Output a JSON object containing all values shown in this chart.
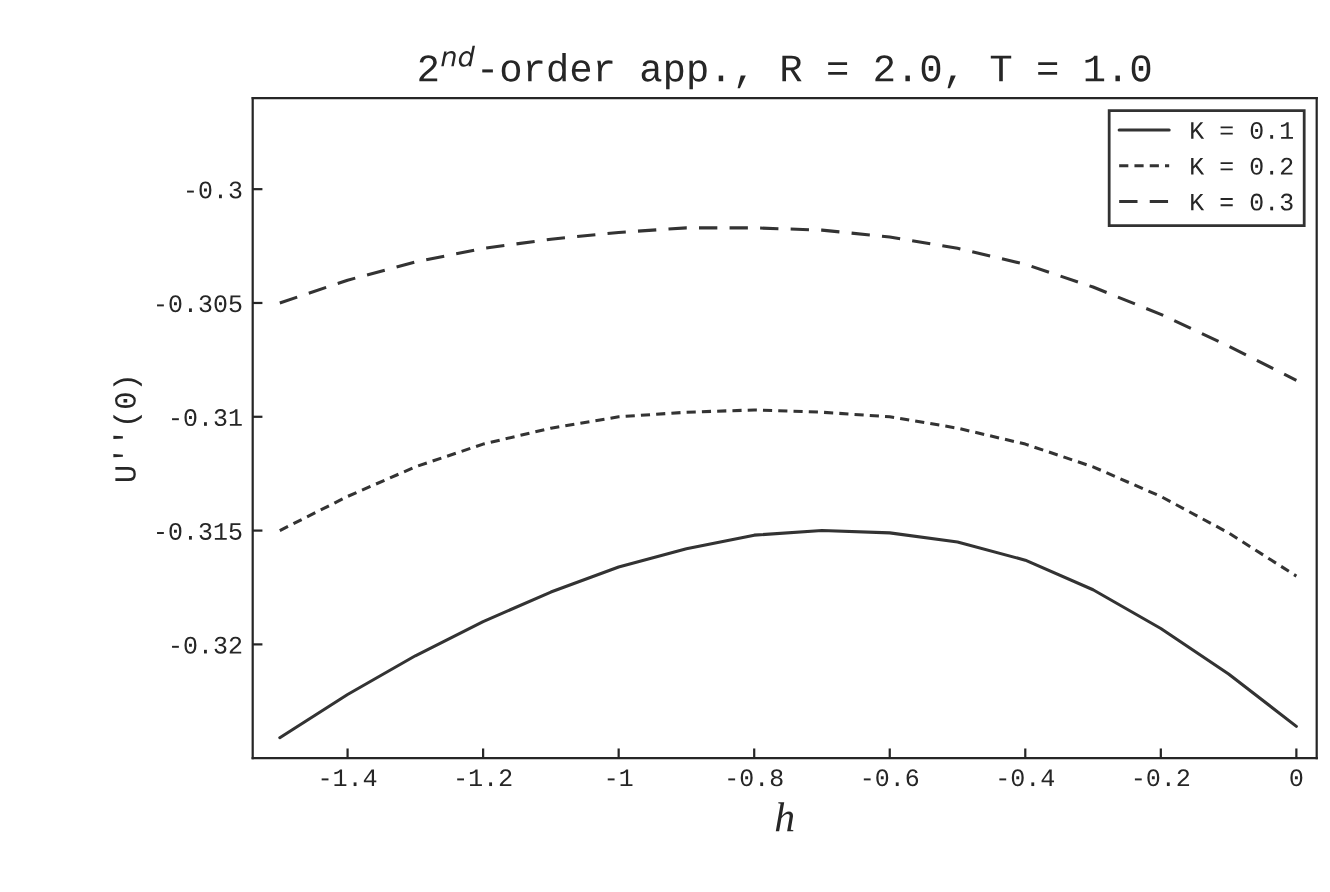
{
  "chart_data": {
    "type": "line",
    "title": "2$^{nd}$-order app., R = 2.0, T = 1.0",
    "xlabel": "h",
    "ylabel": "U''(0)",
    "x": [
      -1.5,
      -1.4,
      -1.3,
      -1.2,
      -1.1,
      -1.0,
      -0.9,
      -0.8,
      -0.7,
      -0.6,
      -0.5,
      -0.4,
      -0.3,
      -0.2,
      -0.1,
      0
    ],
    "series": [
      {
        "name": "K = 0.1",
        "color": "#333333",
        "line_style": "solid",
        "values": [
          -0.3241,
          -0.3222,
          -0.3205,
          -0.319,
          -0.3177,
          -0.3166,
          -0.3158,
          -0.3152,
          -0.315,
          -0.3151,
          -0.3155,
          -0.3163,
          -0.3176,
          -0.3193,
          -0.3213,
          -0.3236
        ]
      },
      {
        "name": "K = 0.2",
        "color": "#333333",
        "line_style": "dotted",
        "values": [
          -0.315,
          -0.3135,
          -0.3122,
          -0.3112,
          -0.3105,
          -0.31,
          -0.3098,
          -0.3097,
          -0.3098,
          -0.31,
          -0.3105,
          -0.3112,
          -0.3122,
          -0.3135,
          -0.3151,
          -0.317
        ]
      },
      {
        "name": "K = 0.3",
        "color": "#333333",
        "line_style": "dashed",
        "values": [
          -0.305,
          -0.304,
          -0.3032,
          -0.3026,
          -0.3022,
          -0.3019,
          -0.3017,
          -0.3017,
          -0.3018,
          -0.3021,
          -0.3026,
          -0.3033,
          -0.3043,
          -0.3055,
          -0.3069,
          -0.3084
        ]
      }
    ],
    "xlim": [
      -1.54,
      0.03
    ],
    "ylim": [
      -0.325,
      -0.296
    ],
    "xticks": [
      -1.4,
      -1.2,
      -1,
      -0.8,
      -0.6,
      -0.4,
      -0.2,
      0
    ],
    "yticks": [
      -0.3,
      -0.305,
      -0.31,
      -0.315,
      -0.32
    ],
    "grid": false,
    "legend": "top right"
  }
}
